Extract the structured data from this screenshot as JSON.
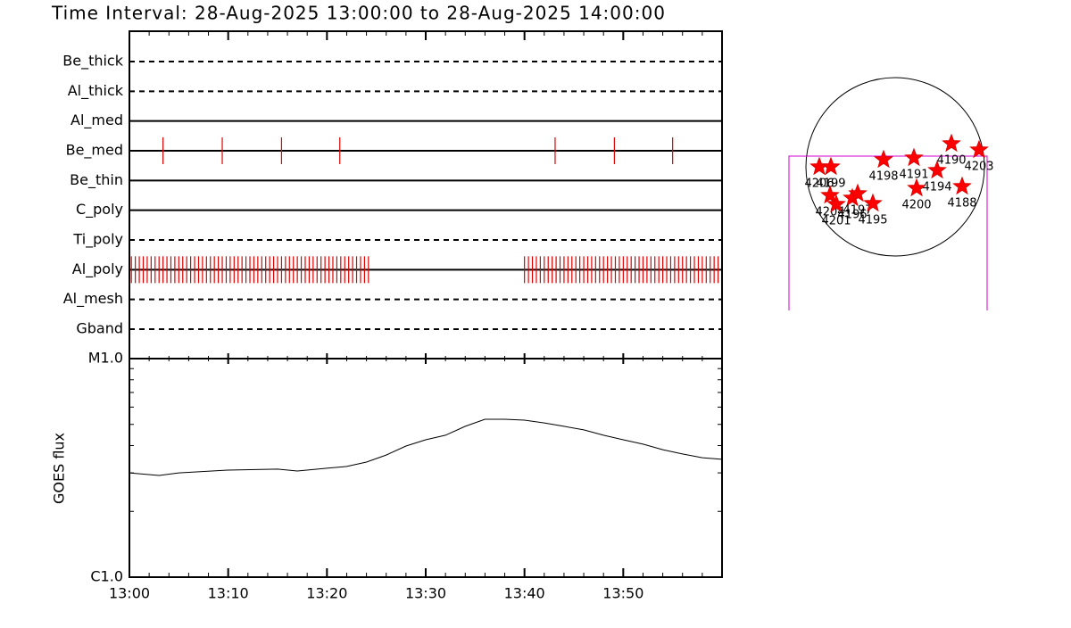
{
  "title": "Time Interval: 28-Aug-2025 13:00:00 to 28-Aug-2025 14:00:00",
  "chart_data": [
    {
      "type": "event",
      "rows": [
        {
          "name": "Be_thick",
          "line": "dashed"
        },
        {
          "name": "Al_thick",
          "line": "dashed"
        },
        {
          "name": "Al_med",
          "line": "solid"
        },
        {
          "name": "Be_med",
          "line": "solid",
          "color": "#e00000",
          "exposures": [
            3.4,
            9.4,
            15.4,
            21.3,
            43.1,
            49.1,
            55.0
          ]
        },
        {
          "name": "Be_thin",
          "line": "solid"
        },
        {
          "name": "C_poly",
          "line": "solid"
        },
        {
          "name": "Ti_poly",
          "line": "dashed"
        },
        {
          "name": "Al_poly",
          "line": "solid",
          "color": "#e00000",
          "exposures": [
            0.2,
            0.6,
            1.0,
            1.4,
            1.8,
            2.2,
            2.6,
            3.0,
            3.4,
            3.8,
            4.2,
            4.6,
            5.0,
            5.4,
            5.8,
            6.2,
            6.6,
            7.0,
            7.4,
            7.8,
            8.2,
            8.6,
            9.0,
            9.4,
            9.8,
            10.2,
            10.6,
            11.0,
            11.4,
            11.8,
            12.2,
            12.6,
            13.0,
            13.4,
            13.8,
            14.2,
            14.6,
            15.0,
            15.4,
            15.8,
            16.2,
            16.6,
            17.0,
            17.4,
            17.8,
            18.2,
            18.6,
            19.0,
            19.4,
            19.8,
            20.2,
            20.6,
            21.0,
            21.4,
            21.8,
            22.2,
            22.6,
            23.0,
            23.4,
            23.8,
            24.2,
            40.0,
            40.4,
            40.8,
            41.2,
            41.6,
            42.0,
            42.4,
            42.8,
            43.2,
            43.6,
            44.0,
            44.4,
            44.8,
            45.2,
            45.6,
            46.0,
            46.4,
            46.8,
            47.2,
            47.6,
            48.0,
            48.4,
            48.8,
            49.2,
            49.6,
            50.0,
            50.4,
            50.8,
            51.2,
            51.6,
            52.0,
            52.4,
            52.8,
            53.2,
            53.6,
            54.0,
            54.4,
            54.8,
            55.2,
            55.6,
            56.0,
            56.4,
            56.8,
            57.2,
            57.6,
            58.0,
            58.4,
            58.8,
            59.2,
            59.6
          ]
        },
        {
          "name": "Al_mesh",
          "line": "dashed"
        },
        {
          "name": "Gband",
          "line": "dashed"
        }
      ]
    },
    {
      "type": "line",
      "ylabel": "GOES flux",
      "color": "#000000",
      "log": true,
      "x": [
        0,
        3,
        5,
        10,
        15,
        17,
        20,
        22,
        24,
        26,
        28,
        30,
        32,
        34,
        36,
        38,
        40,
        42,
        44,
        46,
        48,
        50,
        52,
        54,
        56,
        58,
        60
      ],
      "values": [
        3e-06,
        2.92e-06,
        3e-06,
        3.09e-06,
        3.12e-06,
        3.06e-06,
        3.15e-06,
        3.21e-06,
        3.36e-06,
        3.62e-06,
        3.98e-06,
        4.25e-06,
        4.46e-06,
        4.9e-06,
        5.28e-06,
        5.28e-06,
        5.23e-06,
        5.08e-06,
        4.9e-06,
        4.72e-06,
        4.46e-06,
        4.25e-06,
        4.06e-06,
        3.83e-06,
        3.66e-06,
        3.52e-06,
        3.46e-06
      ],
      "xlim": [
        0,
        60
      ],
      "xticks": [
        {
          "value": 0,
          "label": "13:00"
        },
        {
          "value": 10,
          "label": "13:10"
        },
        {
          "value": 20,
          "label": "13:20"
        },
        {
          "value": 30,
          "label": "13:30"
        },
        {
          "value": 40,
          "label": "13:40"
        },
        {
          "value": 50,
          "label": "13:50"
        }
      ],
      "xminor": [
        2,
        4,
        6,
        8,
        12,
        14,
        16,
        18,
        22,
        24,
        26,
        28,
        32,
        34,
        36,
        38,
        42,
        44,
        46,
        48,
        52,
        54,
        56,
        58
      ],
      "ylim": [
        1e-06,
        1e-05
      ],
      "yticks": [
        {
          "value": 1e-06,
          "label": "C1.0"
        },
        {
          "value": 1e-05,
          "label": "M1.0"
        }
      ],
      "yminor": [
        2e-06,
        3e-06,
        4e-06,
        5e-06,
        6e-06,
        7e-06,
        8e-06,
        9e-06
      ]
    }
  ],
  "map": {
    "regions": [
      "4206",
      "4199",
      "4198",
      "4191",
      "4190",
      "4203",
      "4194",
      "4200",
      "4188",
      "4204",
      "4201",
      "4196",
      "4197",
      "4195"
    ]
  }
}
